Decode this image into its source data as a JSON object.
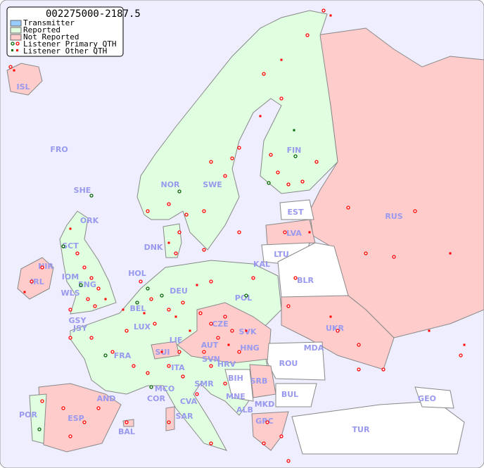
{
  "title": "002275000-2187.5",
  "legend": {
    "items": [
      {
        "label": "Transmitter",
        "color": "#99ccff"
      },
      {
        "label": "Reported",
        "color": "#e0ffe0"
      },
      {
        "label": "Not Reported",
        "color": "#ffcccc"
      },
      {
        "label": "Listener Primary QTH",
        "colors": [
          "#006600",
          "#ff0000"
        ]
      },
      {
        "label": "Listener Other QTH",
        "colors": [
          "#006600",
          "#ff0000"
        ]
      }
    ]
  },
  "colors": {
    "background": "#eeeeff",
    "reported": "#e0ffe0",
    "not_reported": "#ffcccc",
    "label": "#9999ee"
  },
  "countries": [
    {
      "code": "ISL",
      "status": "not_reported"
    },
    {
      "code": "FRO",
      "status": "none"
    },
    {
      "code": "SHE",
      "status": "reported"
    },
    {
      "code": "ORK",
      "status": "reported"
    },
    {
      "code": "NOR",
      "status": "reported"
    },
    {
      "code": "SWE",
      "status": "reported"
    },
    {
      "code": "FIN",
      "status": "reported"
    },
    {
      "code": "RUS",
      "status": "not_reported"
    },
    {
      "code": "EST",
      "status": "none"
    },
    {
      "code": "LVA",
      "status": "not_reported"
    },
    {
      "code": "LTU",
      "status": "none"
    },
    {
      "code": "KAL",
      "status": "none"
    },
    {
      "code": "BLR",
      "status": "none"
    },
    {
      "code": "DNK",
      "status": "reported"
    },
    {
      "code": "HOL",
      "status": "reported"
    },
    {
      "code": "IRL",
      "status": "not_reported"
    },
    {
      "code": "NIR",
      "status": "reported"
    },
    {
      "code": "SCT",
      "status": "reported"
    },
    {
      "code": "IOM",
      "status": "reported"
    },
    {
      "code": "WLS",
      "status": "reported"
    },
    {
      "code": "ENG",
      "status": "reported"
    },
    {
      "code": "DEU",
      "status": "reported"
    },
    {
      "code": "POL",
      "status": "reported"
    },
    {
      "code": "UKR",
      "status": "not_reported"
    },
    {
      "code": "BEL",
      "status": "reported"
    },
    {
      "code": "LUX",
      "status": "reported"
    },
    {
      "code": "GSY",
      "status": "reported"
    },
    {
      "code": "JSY",
      "status": "reported"
    },
    {
      "code": "CZE",
      "status": "not_reported"
    },
    {
      "code": "SVK",
      "status": "not_reported"
    },
    {
      "code": "FRA",
      "status": "reported"
    },
    {
      "code": "SUI",
      "status": "not_reported"
    },
    {
      "code": "LIE",
      "status": "reported"
    },
    {
      "code": "AUT",
      "status": "not_reported"
    },
    {
      "code": "HNG",
      "status": "not_reported"
    },
    {
      "code": "MDA",
      "status": "none"
    },
    {
      "code": "ROU",
      "status": "none"
    },
    {
      "code": "SVN",
      "status": "not_reported"
    },
    {
      "code": "HRV",
      "status": "not_reported"
    },
    {
      "code": "ITA",
      "status": "reported"
    },
    {
      "code": "BIH",
      "status": "none"
    },
    {
      "code": "SRB",
      "status": "not_reported"
    },
    {
      "code": "BUL",
      "status": "none"
    },
    {
      "code": "MCO",
      "status": "reported"
    },
    {
      "code": "COR",
      "status": "reported"
    },
    {
      "code": "SMR",
      "status": "reported"
    },
    {
      "code": "CVA",
      "status": "reported"
    },
    {
      "code": "MNE",
      "status": "none"
    },
    {
      "code": "MKD",
      "status": "not_reported"
    },
    {
      "code": "ALB",
      "status": "none"
    },
    {
      "code": "GRC",
      "status": "not_reported"
    },
    {
      "code": "TUR",
      "status": "none"
    },
    {
      "code": "GEO",
      "status": "none"
    },
    {
      "code": "AND",
      "status": "reported"
    },
    {
      "code": "POR",
      "status": "reported"
    },
    {
      "code": "ESP",
      "status": "not_reported"
    },
    {
      "code": "BAL",
      "status": "not_reported"
    },
    {
      "code": "SAR",
      "status": "not_reported"
    }
  ]
}
